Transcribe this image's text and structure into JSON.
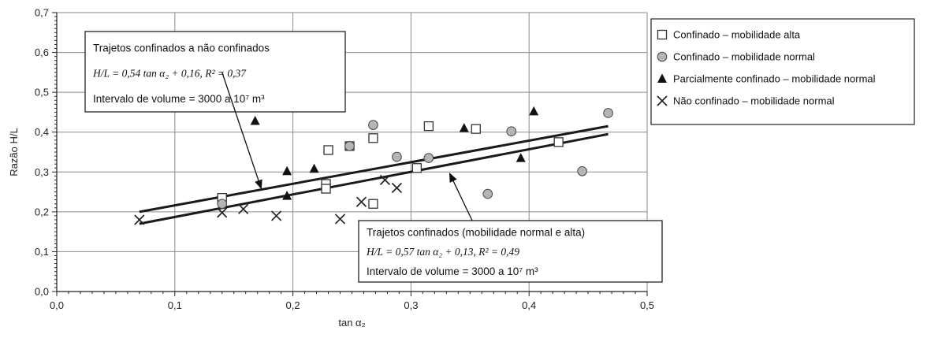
{
  "chart_data": {
    "type": "scatter",
    "xlabel": "tan α₂",
    "ylabel": "Razão H/L",
    "xlim": [
      0.0,
      0.5
    ],
    "ylim": [
      0.0,
      0.7
    ],
    "x_ticks": [
      "0,0",
      "0,1",
      "0,2",
      "0,3",
      "0,4",
      "0,5"
    ],
    "y_ticks": [
      "0,0",
      "0,1",
      "0,2",
      "0,3",
      "0,4",
      "0,5",
      "0,6",
      "0,7"
    ],
    "grid": true,
    "legend_position": "right",
    "series": [
      {
        "name": "Confinado – mobilidade alta",
        "marker": "square",
        "points": [
          [
            0.14,
            0.235
          ],
          [
            0.228,
            0.27
          ],
          [
            0.228,
            0.258
          ],
          [
            0.23,
            0.355
          ],
          [
            0.248,
            0.365
          ],
          [
            0.268,
            0.385
          ],
          [
            0.268,
            0.22
          ],
          [
            0.305,
            0.31
          ],
          [
            0.315,
            0.415
          ],
          [
            0.355,
            0.408
          ],
          [
            0.425,
            0.375
          ]
        ]
      },
      {
        "name": "Confinado – mobilidade normal",
        "marker": "circle",
        "points": [
          [
            0.14,
            0.22
          ],
          [
            0.248,
            0.365
          ],
          [
            0.268,
            0.418
          ],
          [
            0.288,
            0.338
          ],
          [
            0.315,
            0.335
          ],
          [
            0.365,
            0.245
          ],
          [
            0.385,
            0.402
          ],
          [
            0.445,
            0.302
          ],
          [
            0.467,
            0.448
          ]
        ]
      },
      {
        "name": "Parcialmente confinado – mobilidade normal",
        "marker": "triangle",
        "points": [
          [
            0.168,
            0.428
          ],
          [
            0.195,
            0.302
          ],
          [
            0.195,
            0.24
          ],
          [
            0.218,
            0.308
          ],
          [
            0.345,
            0.41
          ],
          [
            0.393,
            0.335
          ],
          [
            0.404,
            0.452
          ]
        ]
      },
      {
        "name": "Não confinado – mobilidade normal",
        "marker": "x",
        "points": [
          [
            0.07,
            0.18
          ],
          [
            0.14,
            0.198
          ],
          [
            0.158,
            0.207
          ],
          [
            0.186,
            0.19
          ],
          [
            0.24,
            0.182
          ],
          [
            0.258,
            0.225
          ],
          [
            0.278,
            0.28
          ],
          [
            0.288,
            0.26
          ]
        ]
      }
    ],
    "regression_lines": [
      {
        "x": [
          0.07,
          0.467
        ],
        "y": [
          0.2,
          0.415
        ]
      },
      {
        "x": [
          0.07,
          0.467
        ],
        "y": [
          0.17,
          0.395
        ]
      }
    ],
    "annotations": [
      {
        "lines": [
          "Trajetos confinados a não confinados",
          "H/L = 0,54 tan α₂ + 0,16, R² = 0,37",
          "Intervalo de volume = 3000 a 10⁷ m³"
        ],
        "arrow_from": [
          0.14,
          0.55
        ],
        "arrow_to": [
          0.173,
          0.26
        ]
      },
      {
        "lines": [
          "Trajetos confinados (mobilidade normal e alta)",
          "H/L = 0,57 tan α₂ + 0,13, R² = 0,49",
          "Intervalo de volume = 3000 a 10⁷ m³"
        ],
        "arrow_from": [
          0.352,
          0.177
        ],
        "arrow_to": [
          0.333,
          0.295
        ]
      }
    ]
  }
}
